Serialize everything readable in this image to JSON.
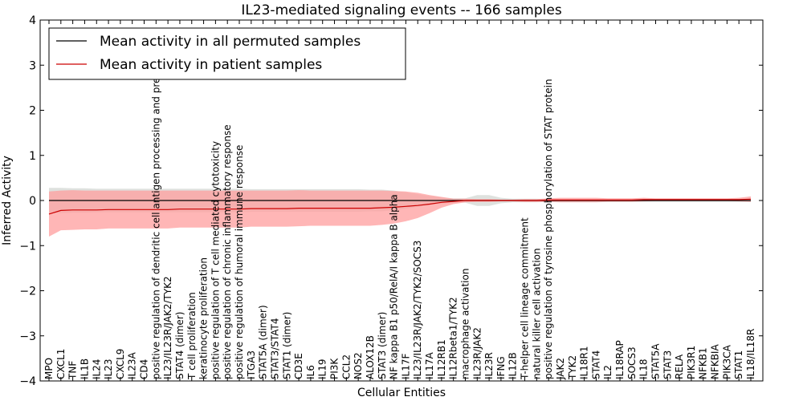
{
  "chart_data": {
    "type": "line",
    "title": "IL23-mediated signaling events -- 166 samples",
    "xlabel": "Cellular Entities",
    "ylabel": "Inferred Activity",
    "ylim": [
      -4,
      4
    ],
    "yticks": [
      -4,
      -3,
      -2,
      -1,
      0,
      1,
      2,
      3,
      4
    ],
    "legend_position": "top-left",
    "categories": [
      "MPO",
      "CXCL1",
      "TNF",
      "IL1B",
      "IL24",
      "IL23",
      "CXCL9",
      "IL23A",
      "CD4",
      "positive regulation of dendritic cell antigen processing and presentation",
      "IL23/IL23R/JAK2/TYK2",
      "STAT4 (dimer)",
      "T cell proliferation",
      "keratinocyte proliferation",
      "positive regulation of T cell mediated cytotoxicity",
      "positive regulation of chronic inflammatory response",
      "positive regulation of humoral immune response",
      "ITGA3",
      "STAT5A (dimer)",
      "STAT3/STAT4",
      "STAT1 (dimer)",
      "CD3E",
      "IL6",
      "IL19",
      "PI3K",
      "CCL2",
      "NOS2",
      "ALOX12B",
      "STAT3 (dimer)",
      "NF kappa B1 p50/RelA/I kappa B alpha",
      "IL17F",
      "IL23/IL23R/JAK2/TYK2/SOCS3",
      "IL17A",
      "IL12RB1",
      "IL12Rbeta1/TYK2",
      "macrophage activation",
      "IL23R/JAK2",
      "IL23R",
      "IFNG",
      "IL12B",
      "T-helper cell lineage commitment",
      "natural killer cell activation",
      "positive regulation of tyrosine phosphorylation of STAT protein",
      "JAK2",
      "TYK2",
      "IL18R1",
      "STAT4",
      "IL2",
      "IL18RAP",
      "SOCS3",
      "IL18",
      "STAT5A",
      "STAT3",
      "RELA",
      "PIK3R1",
      "NFKB1",
      "NFKBIA",
      "PIK3CA",
      "STAT1",
      "IL18/IL18R"
    ],
    "series": [
      {
        "name": "Mean activity in all permuted samples",
        "color": "#000000",
        "band_color": "#c8cdc8",
        "values": [
          0,
          0,
          0,
          0,
          0,
          0,
          0,
          0,
          0,
          0,
          0,
          0,
          0,
          0,
          0,
          0,
          0,
          0,
          0,
          0,
          0,
          0,
          0,
          0,
          0,
          0,
          0,
          0,
          0,
          0,
          0,
          0,
          0,
          0,
          0,
          0,
          0,
          0,
          0,
          0,
          0,
          0,
          0,
          0,
          0,
          0,
          0,
          0,
          0,
          0,
          0,
          0,
          0,
          0,
          0,
          0,
          0,
          0,
          0,
          0
        ],
        "band": [
          0.28,
          0.28,
          0.27,
          0.27,
          0.26,
          0.26,
          0.26,
          0.26,
          0.26,
          0.26,
          0.26,
          0.26,
          0.26,
          0.26,
          0.26,
          0.26,
          0.26,
          0.25,
          0.25,
          0.25,
          0.25,
          0.25,
          0.25,
          0.25,
          0.25,
          0.25,
          0.25,
          0.24,
          0.24,
          0.22,
          0.18,
          0.14,
          0.1,
          0.07,
          0.05,
          0.05,
          0.12,
          0.12,
          0.06,
          0.04,
          0.04,
          0.04,
          0.03,
          0.03,
          0.03,
          0.03,
          0.03,
          0.03,
          0.03,
          0.03,
          0.03,
          0.03,
          0.03,
          0.03,
          0.03,
          0.03,
          0.03,
          0.03,
          0.03,
          0.03
        ]
      },
      {
        "name": "Mean activity in patient samples",
        "color": "#cc0000",
        "band_color": "#ff9d9d",
        "values": [
          -0.3,
          -0.22,
          -0.21,
          -0.21,
          -0.21,
          -0.2,
          -0.2,
          -0.2,
          -0.2,
          -0.2,
          -0.2,
          -0.19,
          -0.19,
          -0.19,
          -0.19,
          -0.19,
          -0.19,
          -0.18,
          -0.18,
          -0.18,
          -0.18,
          -0.17,
          -0.17,
          -0.17,
          -0.17,
          -0.17,
          -0.17,
          -0.17,
          -0.16,
          -0.15,
          -0.13,
          -0.11,
          -0.08,
          -0.04,
          -0.02,
          0,
          0,
          0,
          0,
          0,
          0,
          0,
          0.01,
          0.01,
          0.01,
          0.01,
          0.01,
          0.01,
          0.01,
          0.01,
          0.02,
          0.02,
          0.02,
          0.02,
          0.02,
          0.02,
          0.02,
          0.02,
          0.02,
          0.03
        ],
        "band": [
          0.5,
          0.44,
          0.44,
          0.43,
          0.43,
          0.42,
          0.42,
          0.42,
          0.42,
          0.42,
          0.42,
          0.41,
          0.41,
          0.41,
          0.41,
          0.41,
          0.41,
          0.4,
          0.4,
          0.4,
          0.4,
          0.4,
          0.39,
          0.39,
          0.39,
          0.39,
          0.39,
          0.39,
          0.38,
          0.36,
          0.33,
          0.28,
          0.2,
          0.12,
          0.06,
          0.04,
          0.03,
          0.03,
          0.02,
          0.02,
          0.03,
          0.03,
          0.04,
          0.05,
          0.05,
          0.05,
          0.05,
          0.04,
          0.04,
          0.04,
          0.04,
          0.03,
          0.03,
          0.03,
          0.03,
          0.03,
          0.03,
          0.03,
          0.04,
          0.06
        ]
      }
    ]
  }
}
